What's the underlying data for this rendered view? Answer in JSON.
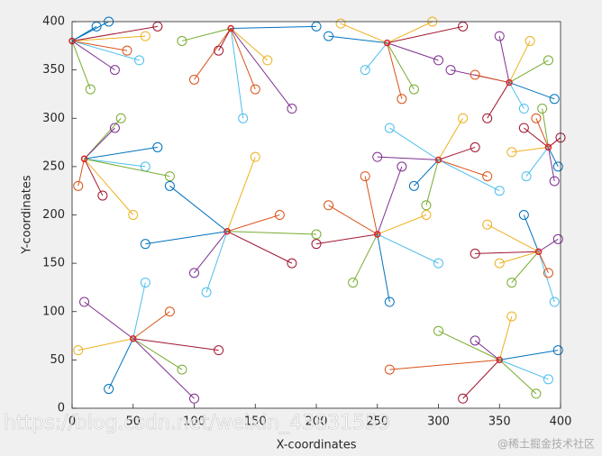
{
  "chart_data": {
    "type": "scatter",
    "x_label": "X-coordinates",
    "y_label": "Y-coordinates",
    "watermarks": [
      "https://blog.csdn.net/weixin_43831559",
      "@稀土掘金技术社区"
    ],
    "xlim": [
      0,
      400
    ],
    "ylim": [
      0,
      400
    ],
    "xticks": [
      0,
      50,
      100,
      150,
      200,
      250,
      300,
      350,
      400
    ],
    "yticks": [
      0,
      50,
      100,
      150,
      200,
      250,
      300,
      350,
      400
    ],
    "line_colors": [
      "#0072bd",
      "#d95319",
      "#edb120",
      "#7e2f8e",
      "#77ac30",
      "#4dbeee",
      "#a2142f"
    ],
    "center_color": "#d62728",
    "series": [
      {
        "center_x": 0,
        "center_y": 380,
        "x": [
          20,
          45,
          60,
          35,
          15,
          55,
          70,
          30
        ],
        "y": [
          395,
          370,
          385,
          350,
          330,
          360,
          395,
          400
        ]
      },
      {
        "center_x": 130,
        "center_y": 393,
        "x": [
          100,
          160,
          180,
          90,
          140,
          120,
          200,
          150
        ],
        "y": [
          340,
          360,
          310,
          380,
          300,
          370,
          395,
          330
        ]
      },
      {
        "center_x": 258,
        "center_y": 378,
        "x": [
          220,
          300,
          280,
          240,
          320,
          210,
          270,
          295
        ],
        "y": [
          398,
          360,
          330,
          350,
          395,
          385,
          320,
          400
        ]
      },
      {
        "center_x": 358,
        "center_y": 337,
        "x": [
          310,
          390,
          370,
          340,
          395,
          330,
          375,
          350
        ],
        "y": [
          350,
          360,
          310,
          300,
          320,
          345,
          380,
          385
        ]
      },
      {
        "center_x": 10,
        "center_y": 258,
        "x": [
          40,
          60,
          25,
          70,
          5,
          50,
          35,
          80
        ],
        "y": [
          300,
          250,
          220,
          270,
          230,
          200,
          290,
          240
        ]
      },
      {
        "center_x": 300,
        "center_y": 257,
        "x": [
          260,
          330,
          280,
          340,
          320,
          250,
          290,
          350
        ],
        "y": [
          290,
          270,
          230,
          240,
          300,
          260,
          210,
          225
        ]
      },
      {
        "center_x": 390,
        "center_y": 270,
        "x": [
          370,
          398,
          380,
          360,
          395,
          385,
          372,
          400
        ],
        "y": [
          290,
          250,
          300,
          265,
          235,
          310,
          240,
          280
        ]
      },
      {
        "center_x": 127,
        "center_y": 183,
        "x": [
          80,
          170,
          150,
          100,
          200,
          110,
          180,
          60
        ],
        "y": [
          230,
          200,
          260,
          140,
          180,
          120,
          150,
          170
        ]
      },
      {
        "center_x": 250,
        "center_y": 180,
        "x": [
          210,
          290,
          270,
          230,
          300,
          200,
          260,
          240
        ],
        "y": [
          210,
          200,
          250,
          130,
          150,
          170,
          110,
          240
        ]
      },
      {
        "center_x": 382,
        "center_y": 162,
        "x": [
          340,
          398,
          360,
          395,
          330,
          370,
          390,
          350
        ],
        "y": [
          190,
          175,
          130,
          110,
          160,
          200,
          140,
          150
        ]
      },
      {
        "center_x": 50,
        "center_y": 72,
        "x": [
          10,
          90,
          60,
          120,
          30,
          80,
          5,
          100
        ],
        "y": [
          110,
          40,
          130,
          60,
          20,
          100,
          60,
          10
        ]
      },
      {
        "center_x": 350,
        "center_y": 50,
        "x": [
          300,
          390,
          320,
          398,
          260,
          360,
          330,
          380
        ],
        "y": [
          80,
          30,
          10,
          60,
          40,
          95,
          70,
          15
        ]
      }
    ]
  }
}
